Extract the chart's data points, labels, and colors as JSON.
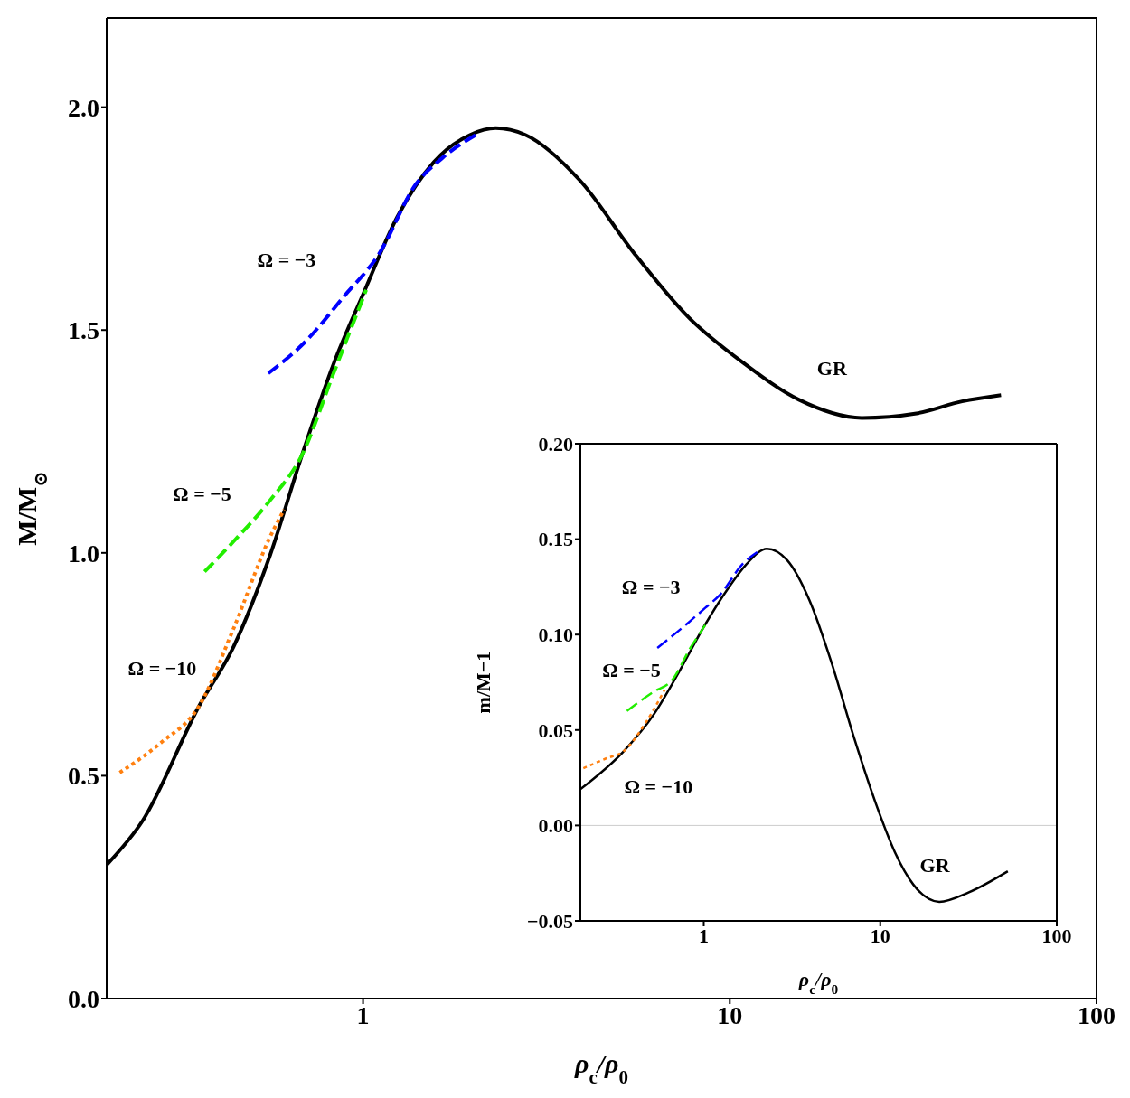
{
  "chart_data": [
    {
      "type": "line",
      "xlabel": "ρ$_{c}$/ρ$_{0}$",
      "ylabel": "M/M$_{⊙}$",
      "log": "x",
      "xlim": [
        0.2,
        100
      ],
      "xticks": [
        1,
        10,
        100
      ],
      "ylim": [
        0,
        2.2
      ],
      "yticks": [
        {
          "value": 0,
          "label": "0.0"
        },
        {
          "value": 0.5,
          "label": "0.5"
        },
        {
          "value": 1,
          "label": "1.0"
        },
        {
          "value": 1.5,
          "label": "1.5"
        },
        {
          "value": 2,
          "label": "2.0"
        }
      ],
      "grid": false,
      "legend": false,
      "marker": "none",
      "series": [
        {
          "name": "GR",
          "color": "#000000",
          "line_style": "solid",
          "x": [
            0.2,
            0.251,
            0.357,
            0.444,
            0.558,
            0.682,
            0.833,
            1,
            1.24,
            1.56,
            1.96,
            2.3,
            2.77,
            3.9,
            5.49,
            7.73,
            10.9,
            15.4,
            22.9,
            32.3,
            43,
            54.9
          ],
          "values": [
            0.3,
            0.4,
            0.656,
            0.79,
            0.995,
            1.22,
            1.426,
            1.58,
            1.754,
            1.877,
            1.938,
            1.953,
            1.938,
            1.836,
            1.672,
            1.528,
            1.426,
            1.344,
            1.303,
            1.313,
            1.34,
            1.354
          ]
        },
        {
          "name": "Ω = −3",
          "color": "#0000ff",
          "line_style": "dashed",
          "x": [
            0.552,
            0.702,
            0.882,
            1.108,
            1.39,
            1.65,
            2.08
          ],
          "values": [
            1.403,
            1.477,
            1.573,
            1.672,
            1.826,
            1.887,
            1.943
          ]
        },
        {
          "name": "Ω = −5",
          "color": "#22ee00",
          "line_style": "dashed",
          "x": [
            0.37,
            0.444,
            0.558,
            0.682,
            0.833,
            1.02
          ],
          "values": [
            0.958,
            1.026,
            1.118,
            1.22,
            1.405,
            1.59
          ]
        },
        {
          "name": "Ω = −10",
          "color": "#ff8010",
          "line_style": "dotted",
          "x": [
            0.217,
            0.281,
            0.357,
            0.444,
            0.558,
            0.609
          ],
          "values": [
            0.507,
            0.574,
            0.656,
            0.831,
            1.036,
            1.097
          ]
        }
      ]
    },
    {
      "type": "line",
      "xlabel": "ρ$_{c}$/ρ$_{0}$",
      "ylabel": "m/M−1",
      "log": "x",
      "xlim": [
        0.2,
        100
      ],
      "xticks": [
        1,
        10,
        100
      ],
      "ylim": [
        -0.05,
        0.2
      ],
      "yticks": [
        {
          "value": -0.05,
          "label": "−0.05"
        },
        {
          "value": 0,
          "label": "0.00"
        },
        {
          "value": 0.05,
          "label": "0.05"
        },
        {
          "value": 0.1,
          "label": "0.10"
        },
        {
          "value": 0.15,
          "label": "0.15"
        },
        {
          "value": 0.2,
          "label": "0.20"
        }
      ],
      "grid": false,
      "legend": false,
      "marker": "none",
      "ref_lines": [
        {
          "axis": "y",
          "value": 0,
          "color": "#cccccc"
        }
      ],
      "series": [
        {
          "name": "GR",
          "color": "#000000",
          "line_style": "solid",
          "x": [
            0.2,
            0.353,
            0.52,
            0.73,
            1,
            1.37,
            1.75,
            2.28,
            2.97,
            3.97,
            5.31,
            7.1,
            9.48,
            12.1,
            15.4,
            21.6,
            31.8,
            52.8
          ],
          "values": [
            0.019,
            0.039,
            0.058,
            0.081,
            0.104,
            0.124,
            0.137,
            0.145,
            0.139,
            0.118,
            0.085,
            0.046,
            0.011,
            -0.014,
            -0.031,
            -0.04,
            -0.035,
            -0.024
          ]
        },
        {
          "name": "Ω = −3",
          "color": "#0000ff",
          "line_style": "dashed",
          "x": [
            0.546,
            0.766,
            1.02,
            1.24,
            1.66,
            2.07
          ],
          "values": [
            0.093,
            0.104,
            0.114,
            0.121,
            0.137,
            0.144
          ]
        },
        {
          "name": "Ω = −5",
          "color": "#22ee00",
          "line_style": "dashed",
          "x": [
            0.367,
            0.52,
            0.66,
            0.84,
            1.02
          ],
          "values": [
            0.06,
            0.07,
            0.076,
            0.093,
            0.105
          ]
        },
        {
          "name": "Ω = −10",
          "color": "#ff8010",
          "line_style": "dotted",
          "x": [
            0.208,
            0.278,
            0.353,
            0.47,
            0.6
          ],
          "values": [
            0.03,
            0.035,
            0.039,
            0.054,
            0.071
          ]
        }
      ]
    }
  ]
}
